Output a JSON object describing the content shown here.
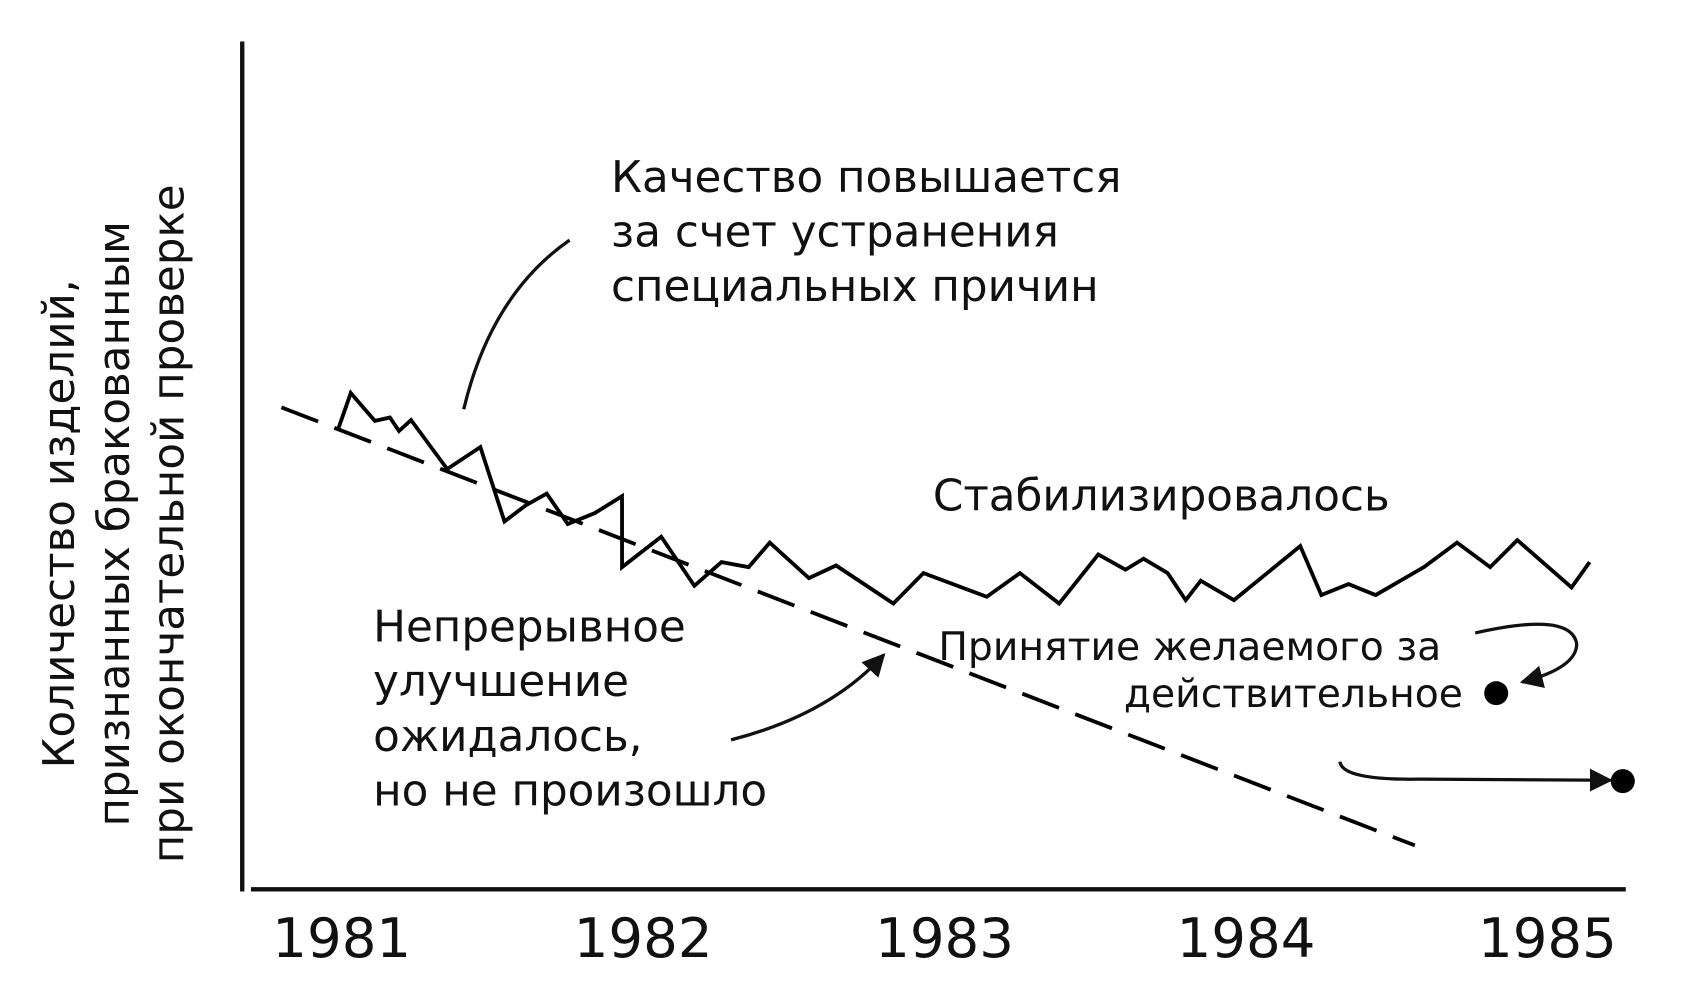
{
  "chart_data": {
    "type": "line",
    "ylabel": [
      "Количество изделий,",
      "признанных бракованным",
      "при окончательной проверке"
    ],
    "xlim": [
      1980.67,
      1985.26
    ],
    "xticks": [
      1981,
      1982,
      1983,
      1984,
      1985
    ],
    "ylim": [
      0,
      100
    ],
    "grid": false,
    "series": [
      {
        "color": "#000000",
        "dash": false,
        "x": [
          1980.99,
          1981.03,
          1981.11,
          1981.16,
          1981.19,
          1981.23,
          1981.35,
          1981.46,
          1981.54,
          1981.61,
          1981.68,
          1981.75,
          1981.84,
          1981.93,
          1981.93,
          1982.06,
          1982.17,
          1982.26,
          1982.35,
          1982.42,
          1982.55,
          1982.64,
          1982.83,
          1982.93,
          1983.14,
          1983.25,
          1983.38,
          1983.51,
          1983.6,
          1983.66,
          1983.74,
          1983.8,
          1983.85,
          1983.96,
          1984.18,
          1984.25,
          1984.34,
          1984.43,
          1984.59,
          1984.7,
          1984.81,
          1984.9,
          1985.08,
          1985.14
        ],
        "values": [
          54.6,
          58.7,
          55.4,
          55.8,
          54.2,
          55.5,
          49.7,
          52.3,
          43.5,
          45.4,
          46.8,
          43.2,
          44.5,
          46.5,
          38.1,
          41.7,
          35.9,
          38.7,
          38.1,
          41.0,
          36.8,
          38.3,
          33.8,
          37.4,
          34.6,
          37.4,
          33.8,
          39.6,
          37.8,
          39.1,
          37.4,
          34.2,
          36.5,
          34.2,
          40.6,
          34.8,
          36.1,
          34.8,
          38.1,
          41.0,
          38.1,
          41.3,
          35.7,
          38.7
        ]
      },
      {
        "color": "#000000",
        "dash": true,
        "x": [
          1980.8,
          1984.56
        ],
        "values": [
          57.0,
          5.2
        ]
      },
      {
        "color": "#000000",
        "marker": true,
        "x": [
          1984.83,
          1985.25
        ],
        "values": [
          23.2,
          12.8
        ]
      }
    ],
    "annotations": [
      {
        "text": [
          "Качество повышается",
          "за счет устранения",
          "специальных причин"
        ]
      },
      {
        "text": [
          "Стабилизировалось"
        ]
      },
      {
        "text": [
          "Непрерывное",
          "улучшение",
          "ожидалось,",
          "но не произошло"
        ]
      },
      {
        "text": [
          "Принятие желаемого за",
          "действительное"
        ]
      }
    ]
  }
}
